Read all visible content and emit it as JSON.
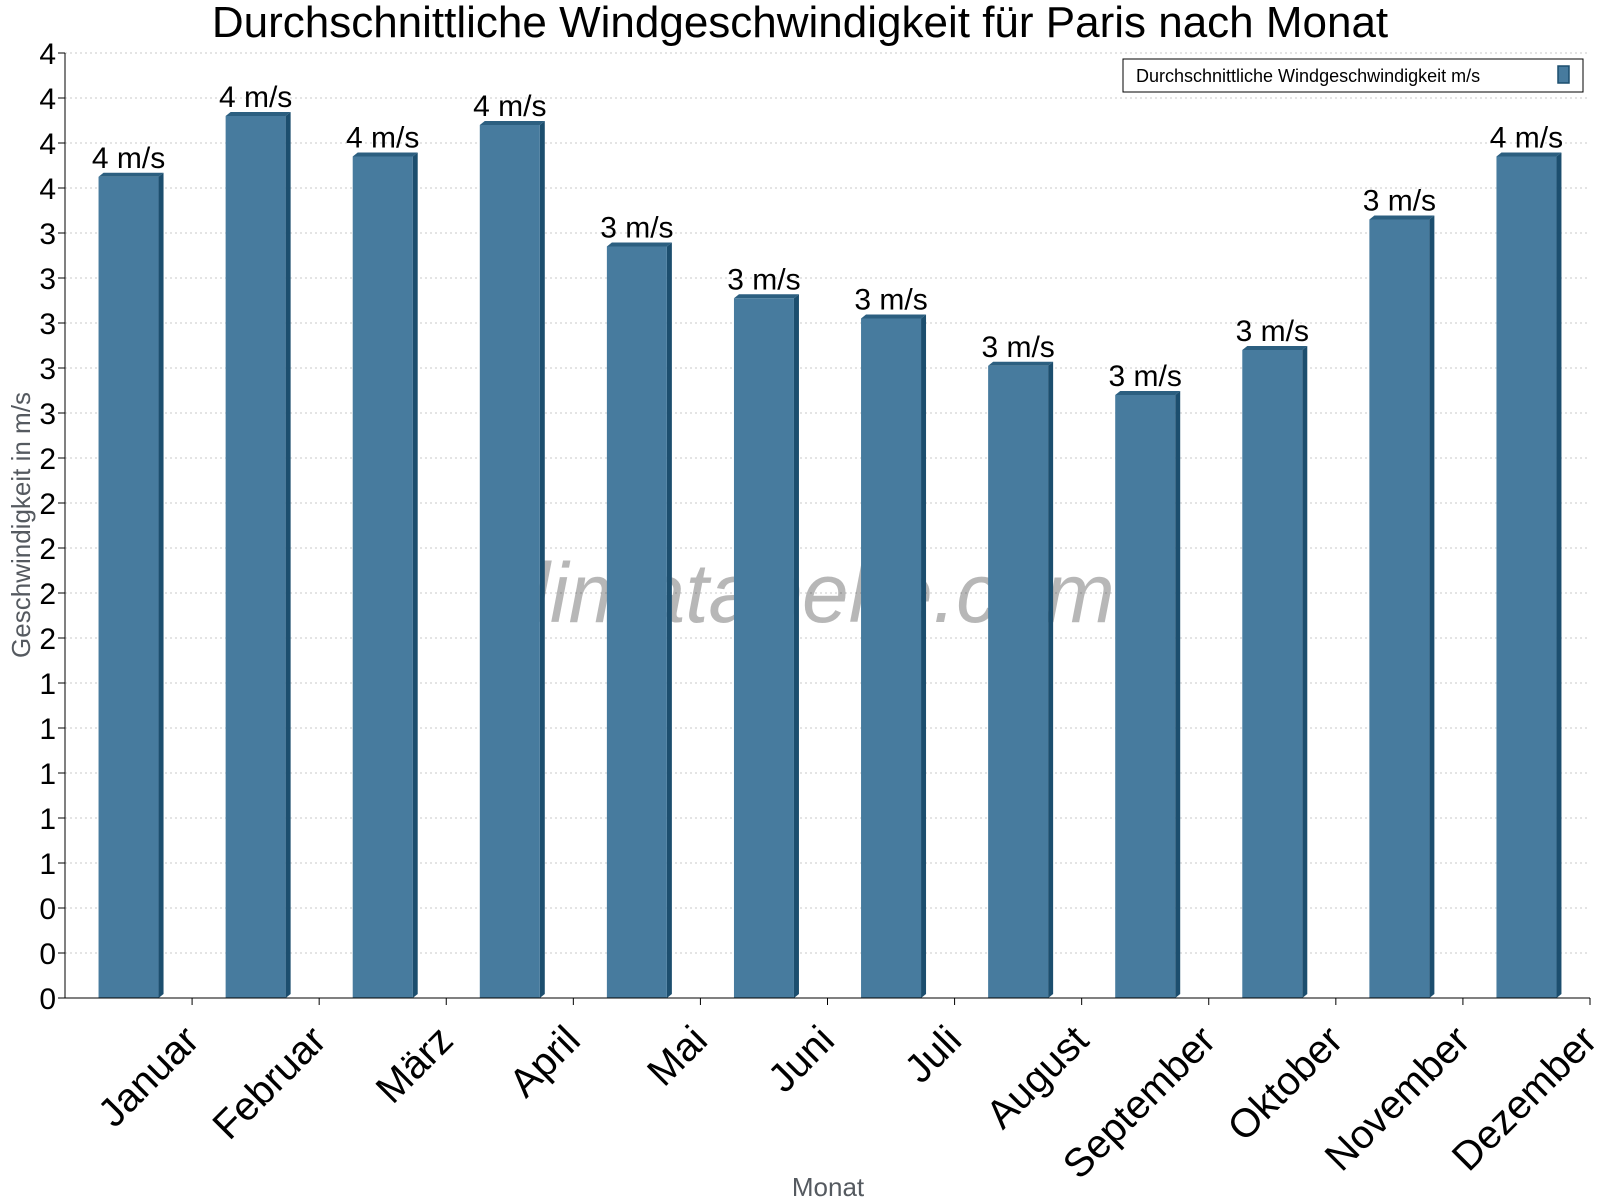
{
  "chart_data": {
    "type": "bar",
    "title": "Durchschnittliche Windgeschwindigkeit für Paris nach Monat",
    "xlabel": "Monat",
    "ylabel": "Geschwindigkeit in m/s",
    "categories": [
      "Januar",
      "Februar",
      "März",
      "April",
      "Mai",
      "Juni",
      "Juli",
      "August",
      "September",
      "Oktober",
      "November",
      "Dezember"
    ],
    "series": [
      {
        "name": "Durchschnittliche Windgeschwindigkeit m/s",
        "values": [
          3.65,
          3.92,
          3.74,
          3.88,
          3.34,
          3.11,
          3.02,
          2.81,
          2.68,
          2.88,
          3.46,
          3.74
        ],
        "labels": [
          "4 m/s",
          "4 m/s",
          "4 m/s",
          "4 m/s",
          "3 m/s",
          "3 m/s",
          "3 m/s",
          "3 m/s",
          "3 m/s",
          "3 m/s",
          "3 m/s",
          "4 m/s"
        ],
        "color": "#477b9e",
        "side_color": "#1c4e6e",
        "top_color": "#2c5f80"
      }
    ],
    "ylim": [
      0,
      4.2
    ],
    "yticks": [
      0,
      0.2,
      0.4,
      0.6,
      0.8,
      1.0,
      1.2,
      1.4,
      1.6,
      1.8,
      2.0,
      2.2,
      2.4,
      2.6,
      2.8,
      3.0,
      3.2,
      3.4,
      3.6,
      3.8,
      4.0,
      4.2
    ],
    "ytick_labels": [
      "0",
      "0",
      "0",
      "1",
      "1",
      "1",
      "1",
      "1",
      "2",
      "2",
      "2",
      "2",
      "2",
      "3",
      "3",
      "3",
      "3",
      "3",
      "4",
      "4",
      "4",
      "4"
    ],
    "grid": true,
    "legend_position": "top-right",
    "watermark": "klimatabelle.com"
  }
}
